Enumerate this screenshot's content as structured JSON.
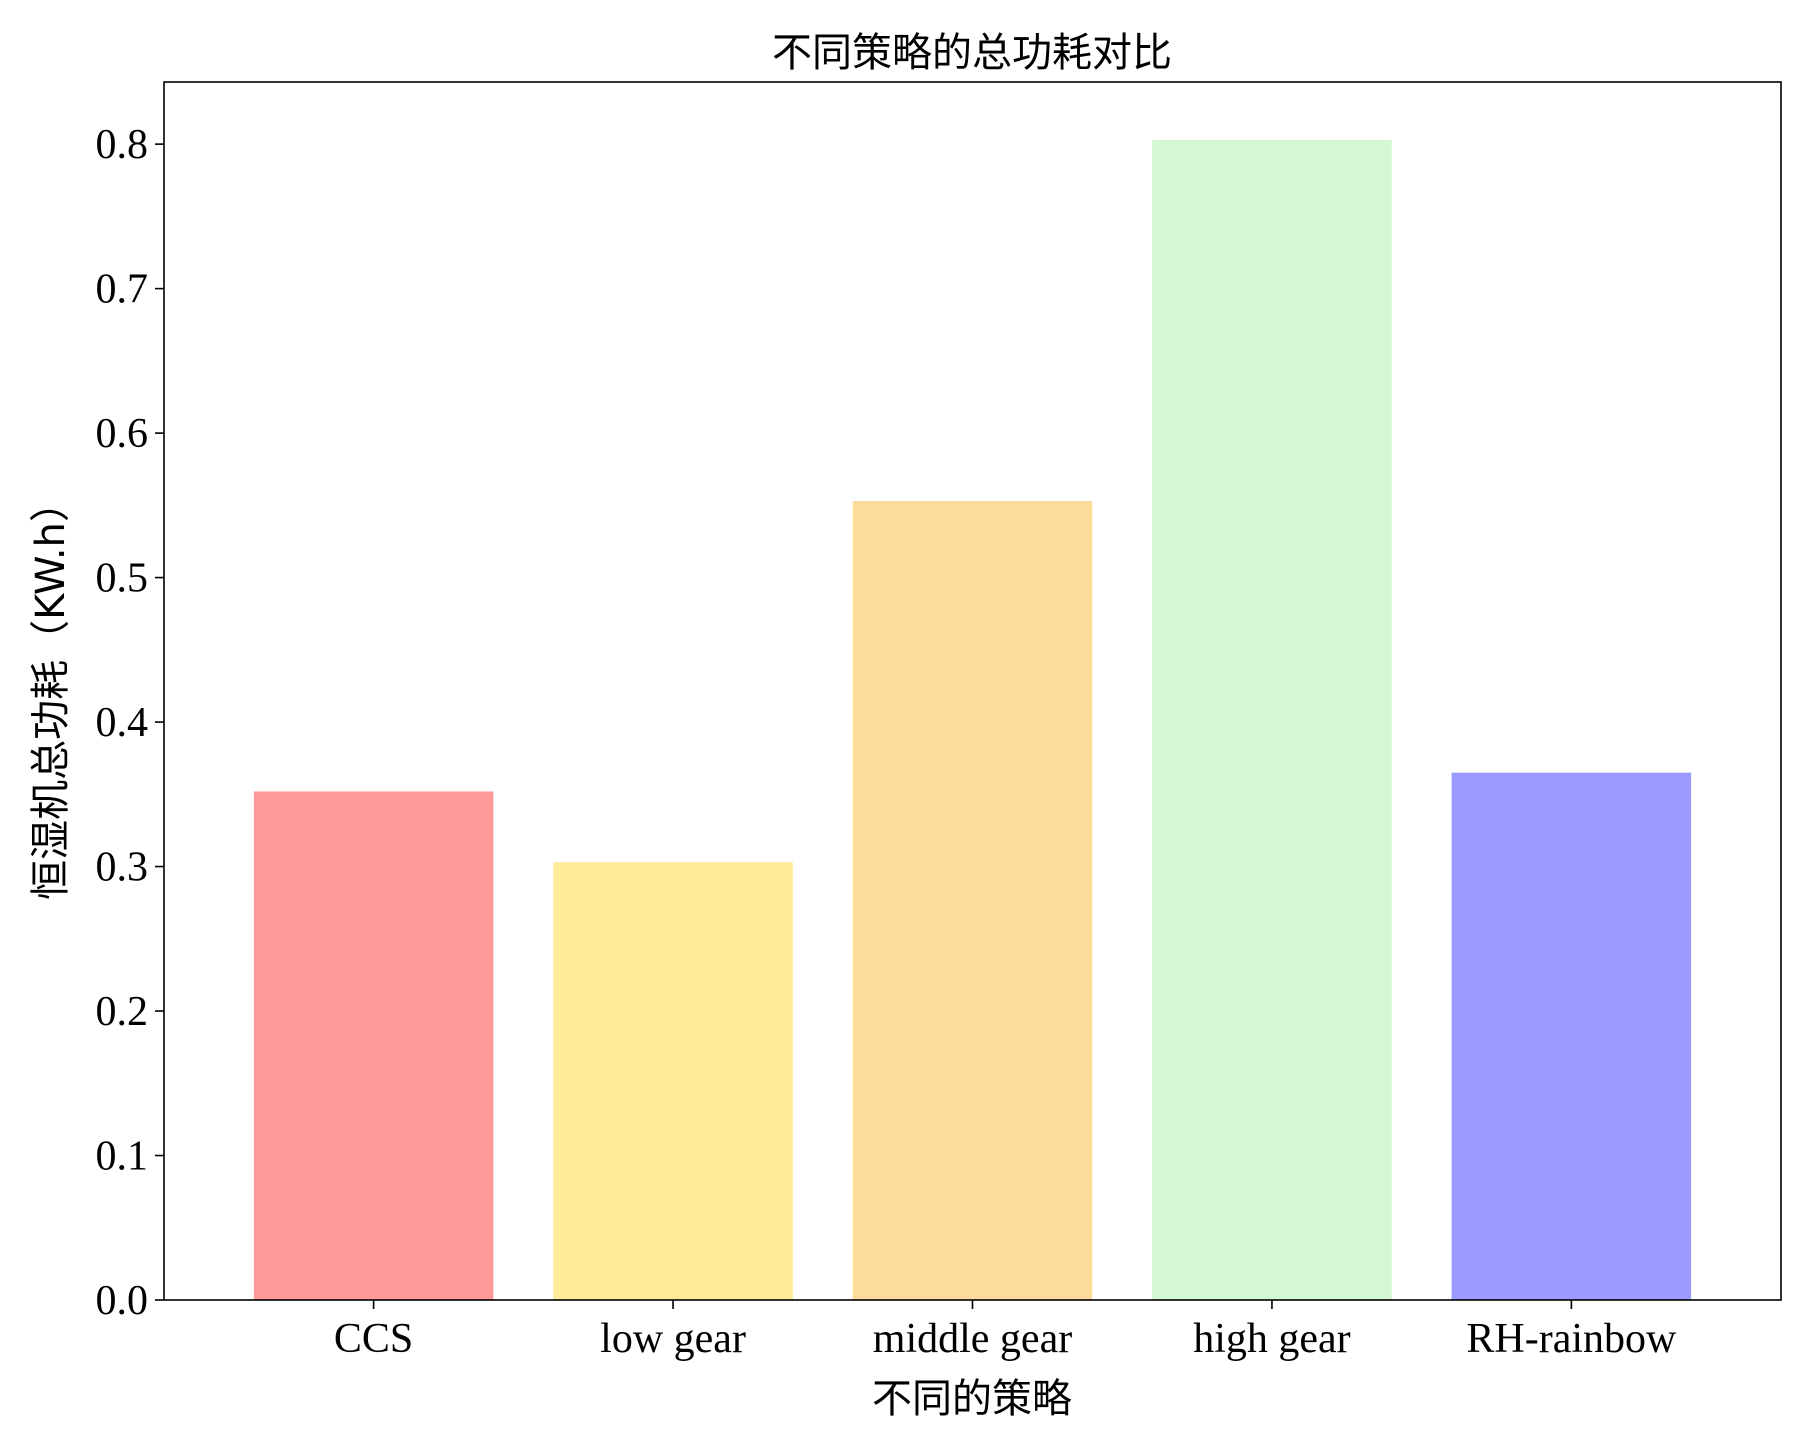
{
  "chart_data": {
    "type": "bar",
    "title": "不同策略的总功耗对比",
    "xlabel": "不同的策略",
    "ylabel": "恒湿机总功耗（KW.h）",
    "categories": [
      "CCS",
      "low gear",
      "middle gear",
      "high gear",
      "RH-rainbow"
    ],
    "values": [
      0.352,
      0.303,
      0.553,
      0.803,
      0.365
    ],
    "colors": [
      "#ff9a9a",
      "#feeb9a",
      "#fddb9b",
      "#d3f8d3",
      "#9b9aff"
    ],
    "ylim": [
      0,
      0.843
    ],
    "yticks": [
      0.0,
      0.1,
      0.2,
      0.3,
      0.4,
      0.5,
      0.6,
      0.7,
      0.8
    ],
    "ytick_labels": [
      "0.0",
      "0.1",
      "0.2",
      "0.3",
      "0.4",
      "0.5",
      "0.6",
      "0.7",
      "0.8"
    ],
    "grid": false,
    "legend": "none"
  }
}
